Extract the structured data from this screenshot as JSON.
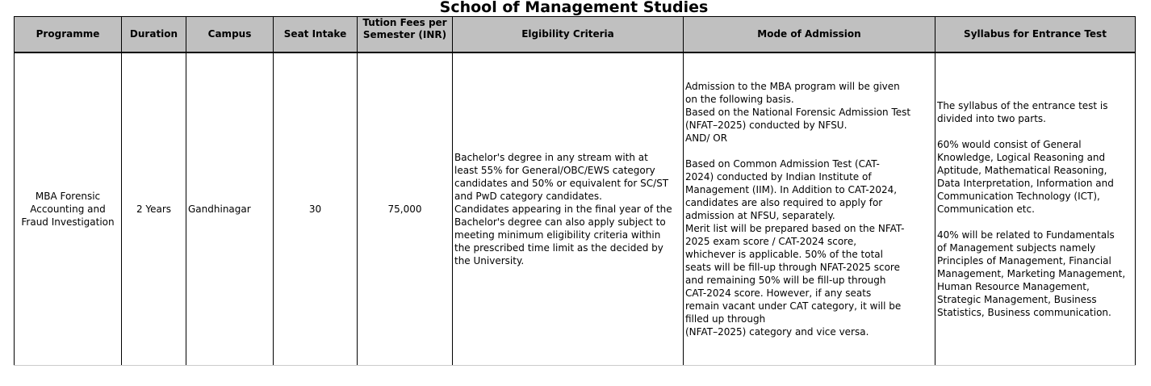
{
  "title": "School of Management Studies",
  "columns": [
    "Programme",
    "Duration",
    "Campus",
    "Seat Intake",
    "Tution Fees per Semester (INR)",
    "Elgibility Criteria",
    "Mode of Admission",
    "Syllabus for Entrance Test"
  ],
  "row": {
    "programme": "MBA Forensic\nAccounting and\nFraud Investigation",
    "duration": "2 Years",
    "campus": "Gandhinagar",
    "seat_intake": "30",
    "fees": "75,000",
    "eligibility": "Bachelor's degree in any stream with at\nleast 55% for General/OBC/EWS category\ncandidates and 50% or equivalent for SC/ST\nand PwD category candidates.\nCandidates appearing in the final year of the\nBachelor's degree can also apply subject to\nmeeting minimum eligibility criteria within\nthe prescribed time limit as the decided by\nthe University.",
    "mode_of_admission": "Admission to the MBA program will be given\non the following basis.\nBased on the National Forensic Admission Test\n(NFAT–2025) conducted by NFSU.\nAND/ OR\n\nBased on Common Admission Test (CAT-\n2024) conducted by Indian Institute of\nManagement (IIM). In Addition to CAT-2024,\ncandidates are also required to apply for\nadmission at NFSU, separately.\nMerit list will be prepared based on the NFAT-\n2025 exam score / CAT-2024 score,\nwhichever is applicable. 50% of the total\nseats will be fill-up through NFAT-2025 score\nand remaining 50% will be fill-up through\nCAT-2024 score. However, if any seats\nremain vacant under CAT category, it will be\nfilled up through\n(NFAT–2025) category and vice versa.",
    "syllabus": "The syllabus of the entrance test is\ndivided into two parts.\n\n60% would consist of General\nKnowledge, Logical Reasoning and\nAptitude, Mathematical Reasoning,\nData Interpretation, Information and\nCommunication Technology (ICT),\nCommunication etc.\n\n40% will be related to Fundamentals\nof Management subjects namely\nPrinciples of Management, Financial\nManagement, Marketing Management,\nHuman Resource Management,\nStrategic Management, Business\nStatistics, Business communication."
  },
  "colors": {
    "header_bg": "#c0c0c0"
  }
}
